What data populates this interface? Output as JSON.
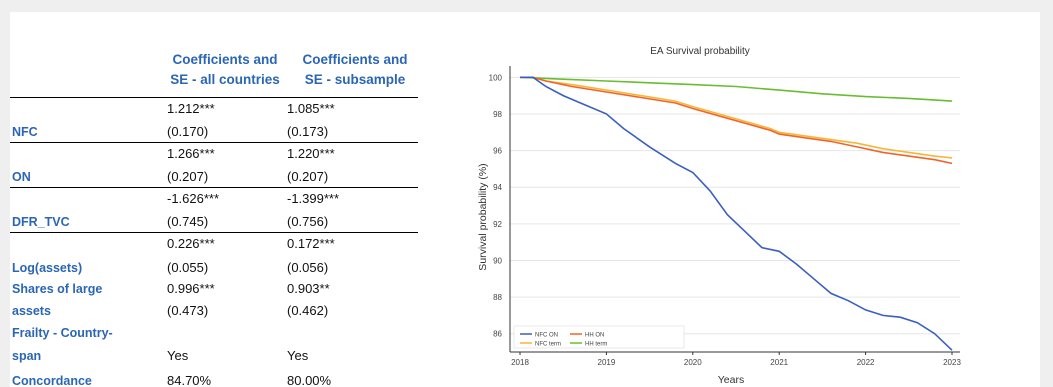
{
  "table": {
    "headers": [
      "Coefficients and SE - all countries",
      "Coefficients and SE - subsample"
    ],
    "header_lines": [
      [
        "Coefficients and",
        "SE - all countries"
      ],
      [
        "Coefficients and",
        "SE - subsample"
      ]
    ],
    "rows": [
      {
        "label": "NFC",
        "coef": [
          "1.212***",
          "1.085***"
        ],
        "se": [
          "(0.170)",
          "(0.173)"
        ]
      },
      {
        "label": "ON",
        "coef": [
          "1.266***",
          "1.220***"
        ],
        "se": [
          "(0.207)",
          "(0.207)"
        ]
      },
      {
        "label": "DFR_TVC",
        "coef": [
          "-1.626***",
          "-1.399***"
        ],
        "se": [
          "(0.745)",
          "(0.756)"
        ]
      },
      {
        "label": "Log(assets)",
        "coef": [
          "0.226***",
          "0.172***"
        ],
        "se": [
          "(0.055)",
          "(0.056)"
        ]
      },
      {
        "label_lines": [
          "Shares of large",
          "assets"
        ],
        "coef": [
          "0.996***",
          "0.903**"
        ],
        "se": [
          "(0.473)",
          "(0.462)"
        ]
      },
      {
        "label_lines": [
          "Frailty - Country-",
          "span"
        ],
        "values": [
          "Yes",
          "Yes"
        ]
      },
      {
        "label": "Concordance",
        "values": [
          "84.70%",
          "80.00%"
        ]
      }
    ]
  },
  "chart_data": {
    "type": "line",
    "title": "EA Survival probability",
    "xlabel": "Years",
    "ylabel": "Survival probability (%)",
    "xlim": [
      2018,
      2023
    ],
    "ylim": [
      85,
      100.4
    ],
    "x_ticks": [
      "2018",
      "2019",
      "2020",
      "2021",
      "2022",
      "2023"
    ],
    "y_ticks": [
      86,
      88,
      90,
      92,
      94,
      96,
      98,
      100
    ],
    "grid": "horizontal",
    "legend": "bottom-left",
    "series": [
      {
        "name": "NFC ON",
        "color": "#3a5fc0",
        "x": [
          2018.0,
          2018.15,
          2018.3,
          2018.5,
          2018.7,
          2019.0,
          2019.2,
          2019.5,
          2019.8,
          2020.0,
          2020.2,
          2020.4,
          2020.6,
          2020.8,
          2021.0,
          2021.2,
          2021.4,
          2021.6,
          2021.8,
          2022.0,
          2022.2,
          2022.4,
          2022.6,
          2022.8,
          2023.0
        ],
        "y": [
          100.0,
          100.0,
          99.5,
          99.0,
          98.6,
          98.0,
          97.2,
          96.2,
          95.3,
          94.8,
          93.8,
          92.5,
          91.6,
          90.7,
          90.5,
          89.8,
          89.0,
          88.2,
          87.8,
          87.3,
          87.0,
          86.9,
          86.6,
          86.0,
          85.1
        ]
      },
      {
        "name": "HH ON",
        "color": "#f0642a",
        "x": [
          2018.0,
          2018.15,
          2018.3,
          2018.6,
          2019.0,
          2019.4,
          2019.8,
          2020.0,
          2020.3,
          2020.6,
          2020.9,
          2021.0,
          2021.3,
          2021.6,
          2021.9,
          2022.2,
          2022.5,
          2022.8,
          2023.0
        ],
        "y": [
          100.0,
          100.0,
          99.8,
          99.5,
          99.2,
          98.9,
          98.6,
          98.3,
          97.9,
          97.5,
          97.1,
          96.9,
          96.7,
          96.5,
          96.2,
          95.9,
          95.7,
          95.5,
          95.3
        ]
      },
      {
        "name": "NFC term",
        "color": "#f5b73a",
        "x": [
          2018.0,
          2018.15,
          2018.3,
          2018.6,
          2019.0,
          2019.4,
          2019.8,
          2020.0,
          2020.3,
          2020.6,
          2020.9,
          2021.0,
          2021.3,
          2021.6,
          2021.9,
          2022.2,
          2022.5,
          2022.8,
          2023.0
        ],
        "y": [
          100.0,
          100.0,
          99.8,
          99.6,
          99.3,
          99.0,
          98.7,
          98.4,
          98.0,
          97.6,
          97.2,
          97.0,
          96.8,
          96.6,
          96.4,
          96.1,
          95.9,
          95.7,
          95.6
        ]
      },
      {
        "name": "HH term",
        "color": "#69bd32",
        "x": [
          2018.0,
          2018.5,
          2019.0,
          2019.5,
          2020.0,
          2020.5,
          2021.0,
          2021.5,
          2022.0,
          2022.5,
          2023.0
        ],
        "y": [
          100.0,
          99.9,
          99.8,
          99.7,
          99.6,
          99.5,
          99.3,
          99.1,
          98.95,
          98.85,
          98.7
        ]
      }
    ]
  }
}
